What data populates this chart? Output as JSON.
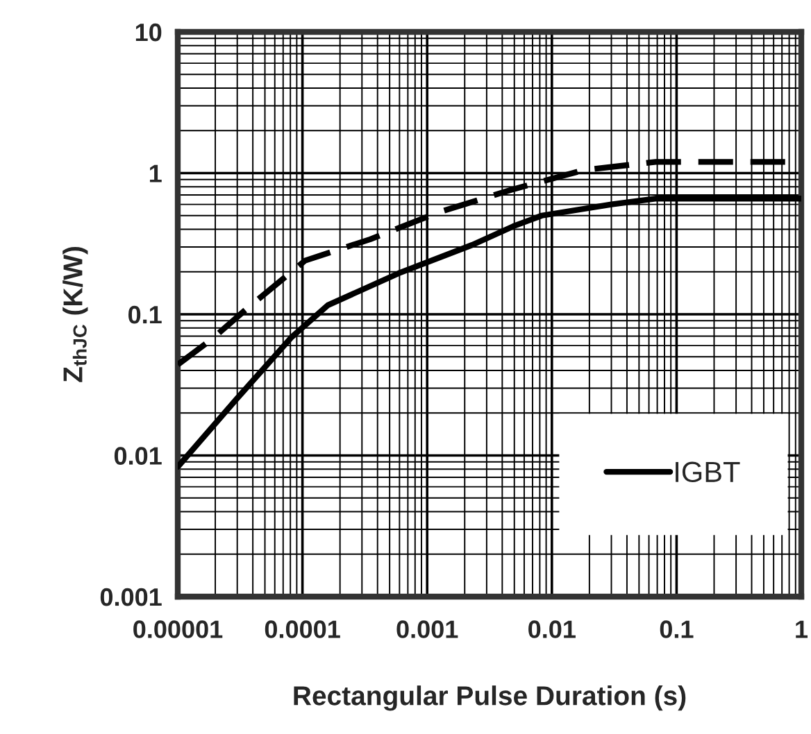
{
  "chart_data": {
    "type": "line",
    "xlabel": "Rectangular Pulse Duration (s)",
    "ylabel": "Z$_{thJC}$ (K/W)",
    "log": "xy",
    "grid": true,
    "legend": "bottom right",
    "xlim": [
      1e-05,
      1
    ],
    "xticks": [
      {
        "value": 1e-05,
        "label": "0.00001"
      },
      {
        "value": 0.0001,
        "label": "0.0001"
      },
      {
        "value": 0.001,
        "label": "0.001"
      },
      {
        "value": 0.01,
        "label": "0.01"
      },
      {
        "value": 0.1,
        "label": "0.1"
      },
      {
        "value": 1,
        "label": "1"
      }
    ],
    "ylim": [
      0.001,
      10
    ],
    "yticks": [
      {
        "value": 0.001,
        "label": "0.001"
      },
      {
        "value": 0.01,
        "label": "0.01"
      },
      {
        "value": 0.1,
        "label": "0.1"
      },
      {
        "value": 1,
        "label": "1"
      },
      {
        "value": 10,
        "label": "10"
      }
    ],
    "series": [
      {
        "name": "IGBT",
        "color": "#000000",
        "line_style": "solid",
        "x": [
          1e-05,
          2.95e-05,
          8.2e-05,
          0.00016,
          0.00059,
          0.0023,
          0.0049,
          0.0083,
          0.03,
          0.069,
          1
        ],
        "values": [
          0.0083,
          0.025,
          0.069,
          0.116,
          0.195,
          0.31,
          0.42,
          0.5,
          0.6,
          0.66,
          0.66
        ]
      },
      {
        "color": "#000000",
        "line_style": "dashed",
        "x": [
          1e-05,
          1.85e-05,
          3.6e-05,
          0.000105,
          0.00035,
          0.00125,
          0.0047,
          0.018,
          0.068,
          1
        ],
        "values": [
          0.044,
          0.066,
          0.11,
          0.24,
          0.34,
          0.53,
          0.76,
          1.05,
          1.2,
          1.2
        ]
      }
    ]
  }
}
